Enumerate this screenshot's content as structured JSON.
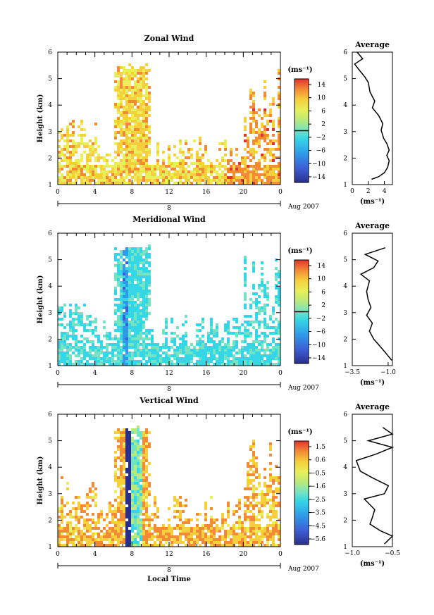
{
  "chart_data": [
    {
      "type": "heatmap",
      "title": "Zonal Wind",
      "xlabel": "",
      "ylabel": "Height (km)",
      "xlim": [
        0,
        24
      ],
      "ylim": [
        1,
        6
      ],
      "x_ticks": [
        "0",
        "4",
        "8",
        "12",
        "16",
        "20",
        "0"
      ],
      "y_ticks": [
        "1",
        "2",
        "3",
        "4",
        "5",
        "6"
      ],
      "date_bar": {
        "day": "8",
        "month_label": "Aug 2007"
      },
      "colorbar": {
        "unit": "(ms⁻¹)",
        "ticks": [
          "14",
          "10",
          "6",
          "2",
          "−2",
          "−6",
          "−10",
          "−14"
        ],
        "range": [
          -16,
          16
        ]
      },
      "average": {
        "title": "Average",
        "xlabel": "(ms⁻¹)",
        "xlim": [
          0,
          5
        ],
        "x_ticks": [
          "0",
          "2",
          "4"
        ],
        "y_ticks": [
          "1",
          "2",
          "3",
          "4",
          "5",
          "6"
        ],
        "points": [
          [
            2.4,
            1.2
          ],
          [
            3.3,
            1.3
          ],
          [
            4.0,
            1.45
          ],
          [
            4.4,
            1.65
          ],
          [
            4.6,
            1.9
          ],
          [
            4.3,
            2.1
          ],
          [
            4.6,
            2.3
          ],
          [
            4.3,
            2.55
          ],
          [
            3.9,
            2.75
          ],
          [
            3.6,
            3.05
          ],
          [
            3.8,
            3.3
          ],
          [
            3.3,
            3.6
          ],
          [
            2.5,
            3.9
          ],
          [
            2.8,
            4.15
          ],
          [
            2.2,
            4.5
          ],
          [
            2.0,
            4.85
          ],
          [
            1.6,
            5.05
          ],
          [
            0.8,
            5.35
          ],
          [
            0.3,
            5.55
          ],
          [
            1.3,
            5.75
          ],
          [
            0.6,
            6.0
          ]
        ]
      }
    },
    {
      "type": "heatmap",
      "title": "Meridional Wind",
      "xlabel": "",
      "ylabel": "Height (km)",
      "xlim": [
        0,
        24
      ],
      "ylim": [
        1,
        6
      ],
      "x_ticks": [
        "0",
        "4",
        "8",
        "12",
        "16",
        "20",
        "0"
      ],
      "y_ticks": [
        "1",
        "2",
        "3",
        "4",
        "5",
        "6"
      ],
      "date_bar": {
        "day": "8",
        "month_label": "Aug 2007"
      },
      "colorbar": {
        "unit": "(ms⁻¹)",
        "ticks": [
          "14",
          "10",
          "6",
          "2",
          "−2",
          "−6",
          "−10",
          "−14"
        ],
        "range": [
          -16,
          16
        ]
      },
      "average": {
        "title": "Average",
        "xlabel": "(ms⁻¹)",
        "xlim": [
          -3.5,
          -0.7
        ],
        "x_ticks": [
          "−3.5",
          "−1.0"
        ],
        "y_ticks": [
          "1",
          "2",
          "3",
          "4",
          "5",
          "6"
        ],
        "points": [
          [
            -0.75,
            1.2
          ],
          [
            -1.2,
            1.5
          ],
          [
            -1.6,
            1.75
          ],
          [
            -2.0,
            2.0
          ],
          [
            -2.3,
            2.3
          ],
          [
            -2.1,
            2.6
          ],
          [
            -2.5,
            2.9
          ],
          [
            -2.2,
            3.2
          ],
          [
            -2.4,
            3.5
          ],
          [
            -2.5,
            3.8
          ],
          [
            -2.3,
            4.2
          ],
          [
            -2.9,
            4.45
          ],
          [
            -2.0,
            4.7
          ],
          [
            -1.7,
            4.95
          ],
          [
            -2.6,
            5.2
          ],
          [
            -1.2,
            5.45
          ]
        ]
      }
    },
    {
      "type": "heatmap",
      "title": "Vertical Wind",
      "xlabel": "Local Time",
      "ylabel": "Height (km)",
      "xlim": [
        0,
        24
      ],
      "ylim": [
        1,
        6
      ],
      "x_ticks": [
        "0",
        "4",
        "8",
        "12",
        "16",
        "20",
        "0"
      ],
      "y_ticks": [
        "1",
        "2",
        "3",
        "4",
        "5",
        "6"
      ],
      "date_bar": {
        "day": "8",
        "month_label": "Aug 2007"
      },
      "colorbar": {
        "unit": "(ms⁻¹)",
        "ticks": [
          "1.5",
          "0.6",
          "−0.5",
          "−1.6",
          "−2.5",
          "−3.5",
          "−4.5",
          "−5.6"
        ],
        "range": [
          -6,
          2
        ]
      },
      "average": {
        "title": "Average",
        "xlabel": "(ms⁻¹)",
        "xlim": [
          -1.0,
          -0.5
        ],
        "x_ticks": [
          "−1.0",
          "−0.5"
        ],
        "y_ticks": [
          "1",
          "2",
          "3",
          "4",
          "5",
          "6"
        ],
        "points": [
          [
            -0.6,
            1.1
          ],
          [
            -0.5,
            1.4
          ],
          [
            -0.65,
            1.6
          ],
          [
            -0.78,
            1.85
          ],
          [
            -0.75,
            2.1
          ],
          [
            -0.72,
            2.4
          ],
          [
            -0.85,
            2.8
          ],
          [
            -0.6,
            3.0
          ],
          [
            -0.55,
            3.3
          ],
          [
            -0.75,
            3.6
          ],
          [
            -0.9,
            3.85
          ],
          [
            -0.95,
            4.25
          ],
          [
            -0.7,
            4.5
          ],
          [
            -0.5,
            4.75
          ],
          [
            -0.8,
            5.0
          ],
          [
            -0.5,
            5.25
          ],
          [
            -0.62,
            5.5
          ]
        ]
      }
    }
  ]
}
